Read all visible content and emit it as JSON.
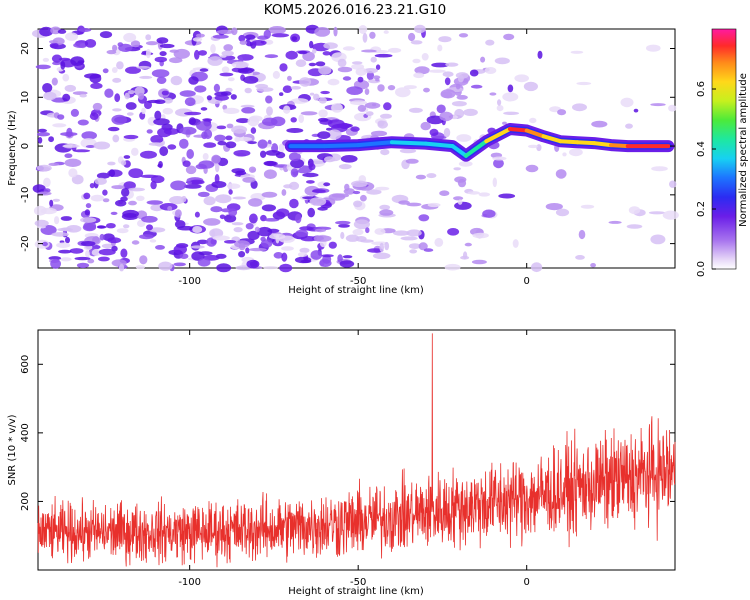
{
  "title": "KOM5.2026.016.23.21.G10",
  "chart_data": [
    {
      "type": "heatmap",
      "name": "spectrogram",
      "xlabel": "Height of straight line (km)",
      "ylabel": "Frequency (Hz)",
      "xlim": [
        -145,
        44
      ],
      "ylim": [
        -25,
        24
      ],
      "xticks": [
        -100,
        -50,
        0
      ],
      "yticks": [
        -20,
        -10,
        0,
        10,
        20
      ],
      "colorbar": {
        "label": "Normalized spectral amplitude",
        "range": [
          0,
          0.8
        ],
        "ticks": [
          0.0,
          0.2,
          0.4,
          0.6
        ],
        "tick_labels": [
          "0.0",
          "0.2",
          "0.4",
          "0.6"
        ]
      },
      "ridge": {
        "description": "narrow high-amplitude frequency track",
        "x": [
          -70,
          -60,
          -50,
          -40,
          -30,
          -22,
          -18,
          -12,
          -5,
          0,
          5,
          10,
          15,
          20,
          25,
          30,
          35,
          42
        ],
        "freq": [
          0,
          0,
          0.2,
          0.8,
          0.5,
          0,
          -2,
          1,
          3.5,
          3.2,
          2,
          1,
          0.8,
          0.6,
          0.2,
          0,
          0,
          0
        ],
        "amplitude": [
          0.1,
          0.15,
          0.15,
          0.25,
          0.25,
          0.25,
          0.2,
          0.4,
          0.75,
          0.7,
          0.55,
          0.5,
          0.65,
          0.45,
          0.6,
          0.75,
          0.78,
          0.75
        ]
      }
    },
    {
      "type": "line",
      "name": "snr",
      "xlabel": "Height of straight line (km)",
      "ylabel": "SNR (10 * v/v)",
      "xlim": [
        -145,
        44
      ],
      "ylim": [
        0,
        700
      ],
      "xticks": [
        -100,
        -50,
        0
      ],
      "yticks": [
        200,
        400,
        600
      ],
      "color": "#e8302c",
      "envelope": {
        "x": [
          -145,
          -100,
          -75,
          -50,
          -25,
          0,
          25,
          44
        ],
        "mean": [
          110,
          110,
          120,
          140,
          175,
          210,
          260,
          290
        ],
        "spread": [
          90,
          95,
          100,
          110,
          120,
          135,
          150,
          160
        ]
      },
      "spike": {
        "x": -28,
        "y": 690
      }
    }
  ]
}
